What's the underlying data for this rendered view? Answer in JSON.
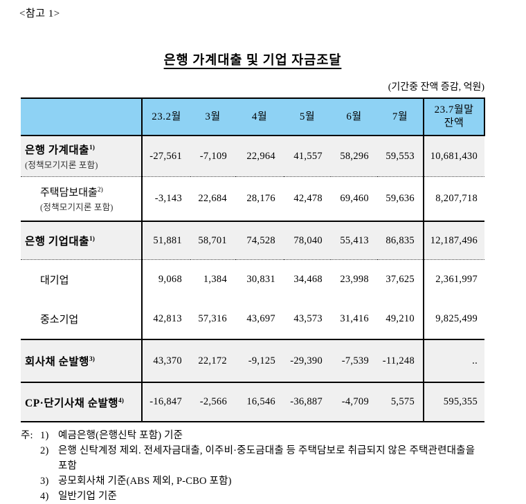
{
  "page": {
    "ref_label": "<참고 1>",
    "title": "은행 가계대출 및 기업 자금조달",
    "unit_note": "(기간중 잔액 증감, 억원)"
  },
  "table": {
    "month_headers": [
      "23.2월",
      "3월",
      "4월",
      "5월",
      "6월",
      "7월"
    ],
    "balance_header": "23.7월말\n잔액",
    "rows": [
      {
        "label": "은행 가계대출",
        "sup": "1)",
        "sublabel": "(정책모기지론 포함)",
        "values": [
          "-27,561",
          "-7,109",
          "22,964",
          "41,557",
          "58,296",
          "59,553",
          "10,681,430"
        ]
      },
      {
        "label": "주택담보대출",
        "sup": "2)",
        "sublabel": "(정책모기지론 포함)",
        "values": [
          "-3,143",
          "22,684",
          "28,176",
          "42,478",
          "69,460",
          "59,636",
          "8,207,718"
        ]
      },
      {
        "label": "은행 기업대출",
        "sup": "1)",
        "values": [
          "51,881",
          "58,701",
          "74,528",
          "78,040",
          "55,413",
          "86,835",
          "12,187,496"
        ]
      },
      {
        "label": "대기업",
        "values": [
          "9,068",
          "1,384",
          "30,831",
          "34,468",
          "23,998",
          "37,625",
          "2,361,997"
        ]
      },
      {
        "label": "중소기업",
        "values": [
          "42,813",
          "57,316",
          "43,697",
          "43,573",
          "31,416",
          "49,210",
          "9,825,499"
        ]
      },
      {
        "label": "회사채 순발행",
        "sup": "3)",
        "values": [
          "43,370",
          "22,172",
          "-9,125",
          "-29,390",
          "-7,539",
          "-11,248",
          ".."
        ]
      },
      {
        "label": "CP·단기사채 순발행",
        "sup": "4)",
        "values": [
          "-16,847",
          "-2,566",
          "16,546",
          "-36,887",
          "-4,709",
          "5,575",
          "595,355"
        ]
      }
    ]
  },
  "notes": {
    "prefix": "주:",
    "items": [
      {
        "num": "1)",
        "text": "예금은행(은행신탁 포함) 기준"
      },
      {
        "num": "2)",
        "text": "은행 신탁계정 제외. 전세자금대출, 이주비·중도금대출 등 주택담보로 취급되지 않은 주택관련대출을 포함"
      },
      {
        "num": "3)",
        "text": "공모회사채 기준(ABS 제외, P-CBO 포함)"
      },
      {
        "num": "4)",
        "text": "일반기업 기준"
      }
    ]
  },
  "colors": {
    "header_bg": "#8ED2F4",
    "shaded_row_bg": "#F0F0F0",
    "border": "#000000"
  }
}
